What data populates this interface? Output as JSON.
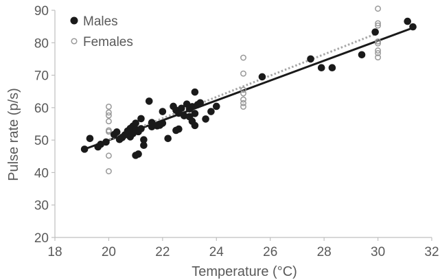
{
  "chart_data": {
    "type": "scatter",
    "title": "",
    "xlabel": "Temperature (°C)",
    "ylabel": "Pulse rate (p/s)",
    "xlim": [
      18,
      32
    ],
    "ylim": [
      20,
      90
    ],
    "xticks": [
      "18",
      "20",
      "22",
      "24",
      "26",
      "28",
      "30",
      "32"
    ],
    "yticks": [
      "20",
      "30",
      "40",
      "50",
      "60",
      "70",
      "80",
      "90"
    ],
    "grid": false,
    "legend_position": "top-left",
    "series": [
      {
        "name": "Males",
        "marker": "filled-circle",
        "color": "#1a1a1a",
        "trendline": {
          "style": "solid",
          "x": [
            19.1,
            31.4
          ],
          "y": [
            47.2,
            84.9
          ]
        },
        "points": [
          [
            19.1,
            47.2
          ],
          [
            19.3,
            50.5
          ],
          [
            19.6,
            47.9
          ],
          [
            19.7,
            48.7
          ],
          [
            19.9,
            49.4
          ],
          [
            20.2,
            51.7
          ],
          [
            20.3,
            52.5
          ],
          [
            20.4,
            50.2
          ],
          [
            20.5,
            50.8
          ],
          [
            20.6,
            51.6
          ],
          [
            20.7,
            52.8
          ],
          [
            20.8,
            53.6
          ],
          [
            20.8,
            51.0
          ],
          [
            20.9,
            52.0
          ],
          [
            20.9,
            54.3
          ],
          [
            21.0,
            53.3
          ],
          [
            21.0,
            55.2
          ],
          [
            21.0,
            45.3
          ],
          [
            21.1,
            45.7
          ],
          [
            21.1,
            52.6
          ],
          [
            21.2,
            53.5
          ],
          [
            21.2,
            56.6
          ],
          [
            21.3,
            48.4
          ],
          [
            21.3,
            50.1
          ],
          [
            21.5,
            62.0
          ],
          [
            21.6,
            54.1
          ],
          [
            21.6,
            55.4
          ],
          [
            21.8,
            54.4
          ],
          [
            21.9,
            54.6
          ],
          [
            22.0,
            55.2
          ],
          [
            22.0,
            58.8
          ],
          [
            22.2,
            50.5
          ],
          [
            22.4,
            60.4
          ],
          [
            22.5,
            59.2
          ],
          [
            22.5,
            53.0
          ],
          [
            22.6,
            53.4
          ],
          [
            22.6,
            58.3
          ],
          [
            22.7,
            59.8
          ],
          [
            22.8,
            57.5
          ],
          [
            22.9,
            61.1
          ],
          [
            23.0,
            59.6
          ],
          [
            23.0,
            57.2
          ],
          [
            23.1,
            55.8
          ],
          [
            23.1,
            60.3
          ],
          [
            23.2,
            64.8
          ],
          [
            23.2,
            58.2
          ],
          [
            23.3,
            60.9
          ],
          [
            23.4,
            61.5
          ],
          [
            23.2,
            54.5
          ],
          [
            23.6,
            56.5
          ],
          [
            23.8,
            58.8
          ],
          [
            24.0,
            60.4
          ],
          [
            25.7,
            69.5
          ],
          [
            27.5,
            75.0
          ],
          [
            27.9,
            72.3
          ],
          [
            28.3,
            72.3
          ],
          [
            29.4,
            76.3
          ],
          [
            29.9,
            83.3
          ],
          [
            31.1,
            86.6
          ],
          [
            31.3,
            84.9
          ]
        ]
      },
      {
        "name": "Females",
        "marker": "open-circle",
        "color": "#999999",
        "trendline": {
          "style": "dotted",
          "x": [
            19.5,
            30.0
          ],
          "y": [
            48.5,
            83.0
          ]
        },
        "points": [
          [
            20.0,
            60.3
          ],
          [
            20.0,
            58.5
          ],
          [
            20.0,
            57.6
          ],
          [
            20.0,
            55.8
          ],
          [
            20.0,
            53.0
          ],
          [
            20.0,
            52.6
          ],
          [
            20.0,
            45.2
          ],
          [
            20.0,
            40.4
          ],
          [
            25.0,
            75.4
          ],
          [
            25.0,
            70.5
          ],
          [
            25.0,
            65.5
          ],
          [
            25.0,
            64.4
          ],
          [
            25.0,
            62.5
          ],
          [
            25.0,
            60.3
          ],
          [
            25.0,
            61.4
          ],
          [
            30.0,
            90.5
          ],
          [
            30.0,
            86.0
          ],
          [
            30.0,
            85.3
          ],
          [
            30.0,
            80.4
          ],
          [
            30.0,
            79.8
          ],
          [
            30.0,
            77.6
          ],
          [
            30.0,
            76.8
          ],
          [
            30.0,
            75.5
          ]
        ]
      }
    ]
  }
}
